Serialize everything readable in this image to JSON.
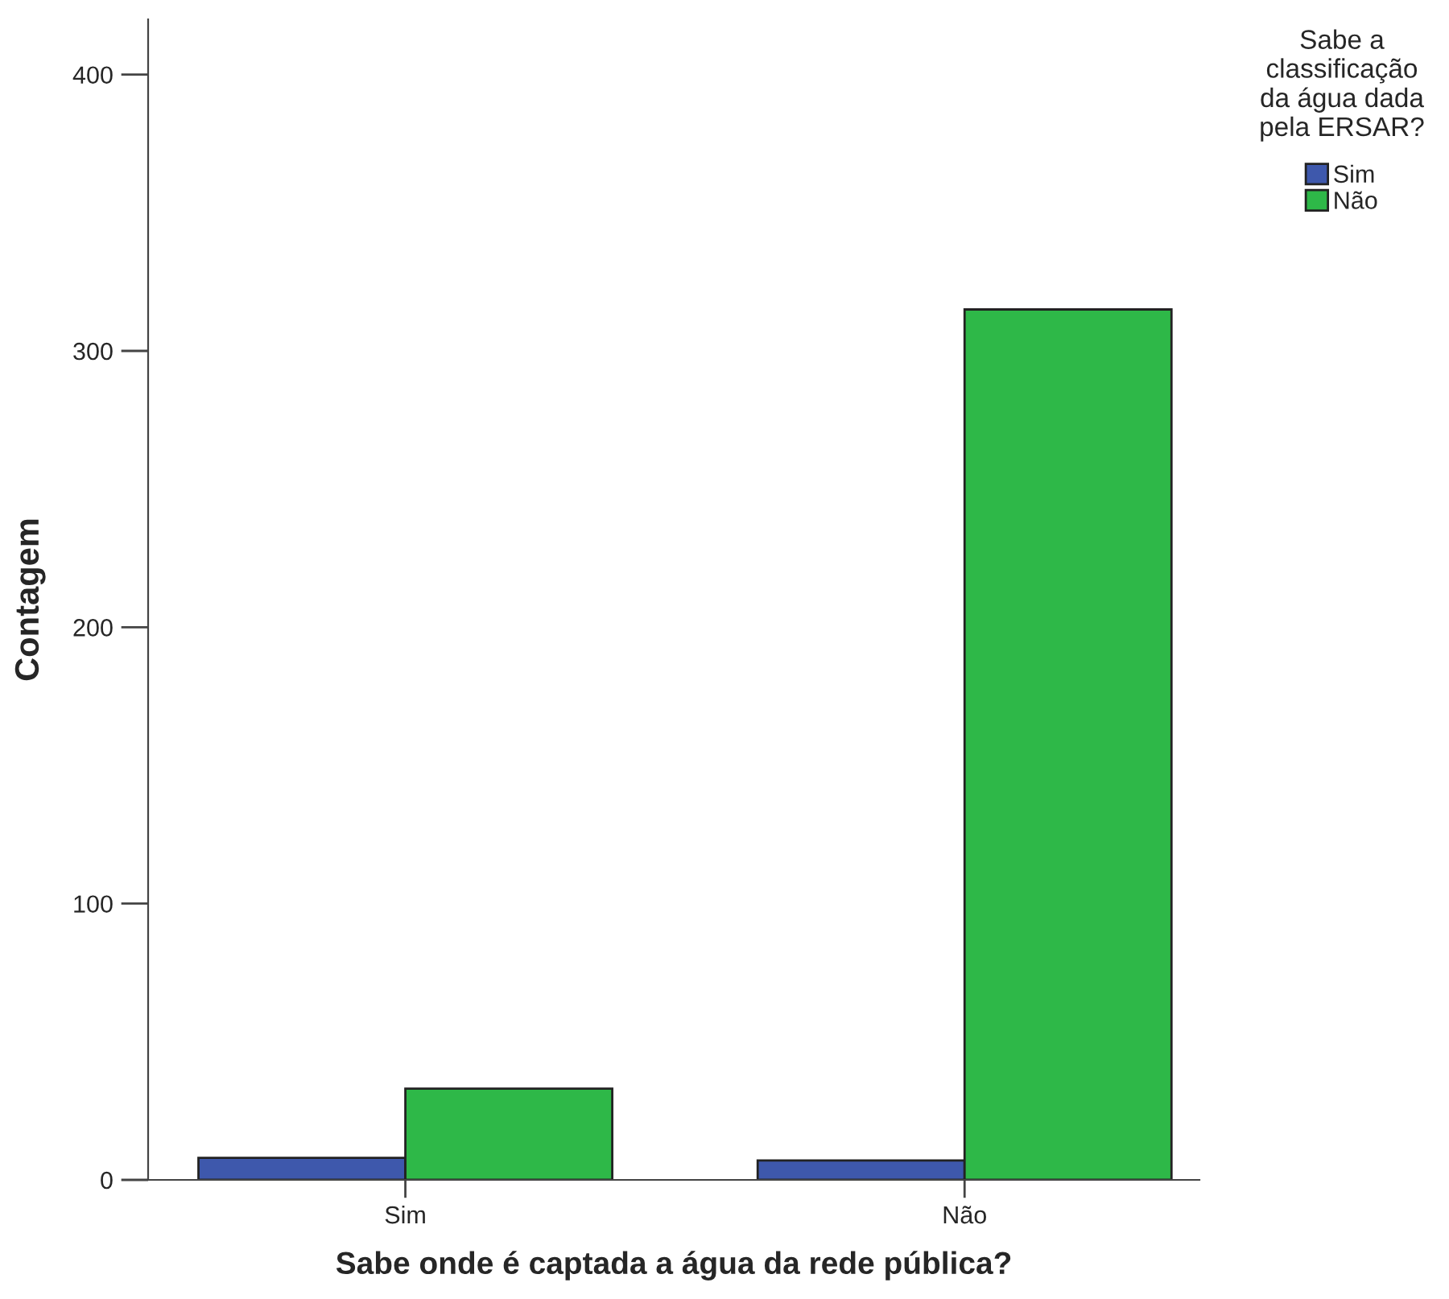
{
  "chart_data": {
    "type": "bar",
    "xlabel": "Sabe onde é captada a água da rede pública?",
    "ylabel": "Contagem",
    "legend_title": "Sabe a\nclassificação\nda água dada\npela ERSAR?",
    "categories": [
      "Sim",
      "Não"
    ],
    "series": [
      {
        "name": "Sim",
        "color": "#3e58ac",
        "values": [
          8,
          7
        ]
      },
      {
        "name": "Não",
        "color": "#2eb848",
        "values": [
          33,
          315
        ]
      }
    ],
    "ylim": [
      0,
      420
    ],
    "yticks": [
      0,
      100,
      200,
      300,
      400
    ],
    "grid": false,
    "legend": "top right"
  }
}
